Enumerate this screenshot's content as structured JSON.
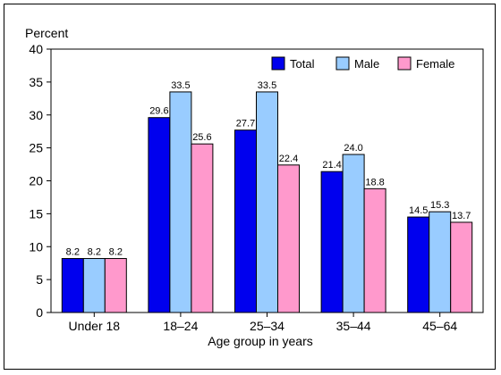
{
  "chart_data": {
    "type": "bar",
    "title": "",
    "ylabel": "Percent",
    "xlabel": "Age group in years",
    "ylim": [
      0,
      40
    ],
    "yticks": [
      0,
      5,
      10,
      15,
      20,
      25,
      30,
      35,
      40
    ],
    "categories": [
      "Under 18",
      "18–24",
      "25–34",
      "35–44",
      "45–64"
    ],
    "series": [
      {
        "name": "Total",
        "color": "#0000ee",
        "values": [
          8.2,
          29.6,
          27.7,
          21.4,
          14.5
        ]
      },
      {
        "name": "Male",
        "color": "#99ccff",
        "values": [
          8.2,
          33.5,
          33.5,
          24.0,
          15.3
        ]
      },
      {
        "name": "Female",
        "color": "#ff99cc",
        "values": [
          8.2,
          25.6,
          22.4,
          18.8,
          13.7
        ]
      }
    ],
    "data_labels": [
      [
        "8.2",
        "29.6",
        "27.7",
        "21.4",
        "14.5"
      ],
      [
        "8.2",
        "33.5",
        "33.5",
        "24.0",
        "15.3"
      ],
      [
        "8.2",
        "25.6",
        "22.4",
        "18.8",
        "13.7"
      ]
    ],
    "grid": false,
    "legend_position": "top-right"
  }
}
